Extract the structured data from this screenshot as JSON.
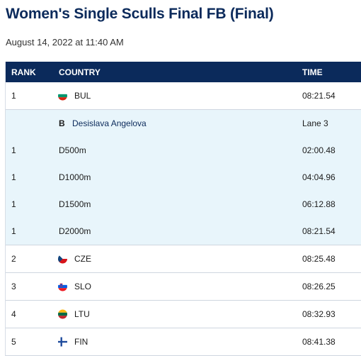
{
  "page": {
    "title": "Women's Single Sculls Final FB (Final)",
    "datetime": "August 14, 2022 at 11:40 AM"
  },
  "table": {
    "headers": {
      "rank": "RANK",
      "country": "COUNTRY",
      "time": "TIME"
    },
    "rows": [
      {
        "rank": "1",
        "country": "BUL",
        "time": "08:21.54",
        "flag": "bul-flag-icon"
      },
      {
        "boat": "B",
        "athlete": "Desislava Angelova",
        "lane": "Lane 3"
      },
      {
        "rank": "1",
        "split": "D500m",
        "time": "02:00.48"
      },
      {
        "rank": "1",
        "split": "D1000m",
        "time": "04:04.96"
      },
      {
        "rank": "1",
        "split": "D1500m",
        "time": "06:12.88"
      },
      {
        "rank": "1",
        "split": "D2000m",
        "time": "08:21.54"
      },
      {
        "rank": "2",
        "country": "CZE",
        "time": "08:25.48",
        "flag": "cze-flag-icon"
      },
      {
        "rank": "3",
        "country": "SLO",
        "time": "08:26.25",
        "flag": "slo-flag-icon"
      },
      {
        "rank": "4",
        "country": "LTU",
        "time": "08:32.93",
        "flag": "ltu-flag-icon"
      },
      {
        "rank": "5",
        "country": "FIN",
        "time": "08:41.38",
        "flag": "fin-flag-icon"
      }
    ]
  },
  "colors": {
    "header_bg": "#0b2a5b",
    "highlight_bg": "#e8f5fb"
  }
}
